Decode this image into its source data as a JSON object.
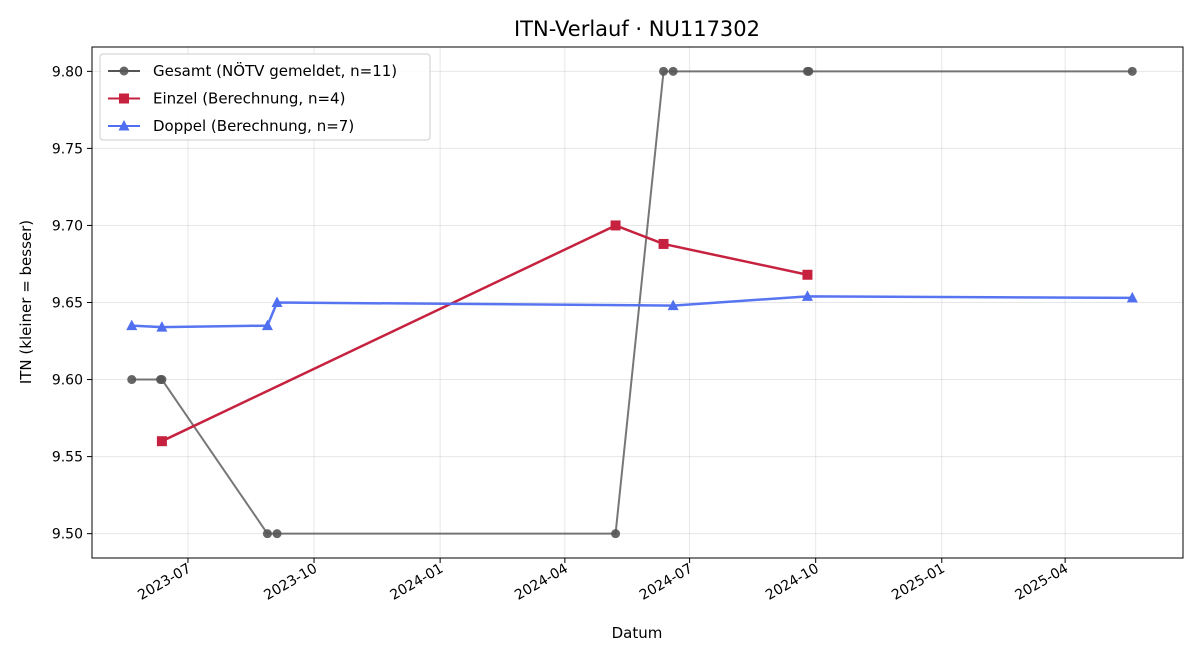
{
  "chart_data": {
    "type": "line",
    "title": "ITN-Verlauf · NU117302",
    "xlabel": "Datum",
    "ylabel": "ITN  (kleiner = besser)",
    "x_type": "date",
    "xlim": [
      "2023-04-22",
      "2025-06-26"
    ],
    "ylim": [
      9.4842,
      9.8158
    ],
    "x_ticks": [
      {
        "date": "2023-07-01",
        "label": "2023-07"
      },
      {
        "date": "2023-10-01",
        "label": "2023-10"
      },
      {
        "date": "2024-01-01",
        "label": "2024-01"
      },
      {
        "date": "2024-04-01",
        "label": "2024-04"
      },
      {
        "date": "2024-07-01",
        "label": "2024-07"
      },
      {
        "date": "2024-10-01",
        "label": "2024-10"
      },
      {
        "date": "2025-01-01",
        "label": "2025-01"
      },
      {
        "date": "2025-04-01",
        "label": "2025-04"
      }
    ],
    "y_ticks": [
      9.5,
      9.55,
      9.6,
      9.65,
      9.7,
      9.75,
      9.8
    ],
    "y_tick_labels": [
      "9.50",
      "9.55",
      "9.60",
      "9.65",
      "9.70",
      "9.75",
      "9.80"
    ],
    "grid": true,
    "legend_position": "top-left",
    "series": [
      {
        "name": "Gesamt (NÖTV gemeldet, n=11)",
        "color": "#555555",
        "marker": "circle",
        "points": [
          {
            "x": "2023-05-21",
            "y": 9.6
          },
          {
            "x": "2023-06-11",
            "y": 9.6
          },
          {
            "x": "2023-06-12",
            "y": 9.6
          },
          {
            "x": "2023-08-28",
            "y": 9.5
          },
          {
            "x": "2023-09-04",
            "y": 9.5
          },
          {
            "x": "2024-05-08",
            "y": 9.5
          },
          {
            "x": "2024-06-12",
            "y": 9.8
          },
          {
            "x": "2024-06-19",
            "y": 9.8
          },
          {
            "x": "2024-09-25",
            "y": 9.8
          },
          {
            "x": "2024-09-26",
            "y": 9.8
          },
          {
            "x": "2025-05-20",
            "y": 9.8
          }
        ]
      },
      {
        "name": "Einzel (Berechnung, n=4)",
        "color": "#c62240",
        "marker": "square",
        "points": [
          {
            "x": "2023-06-12",
            "y": 9.56
          },
          {
            "x": "2024-05-08",
            "y": 9.7
          },
          {
            "x": "2024-06-12",
            "y": 9.688
          },
          {
            "x": "2024-09-25",
            "y": 9.668
          }
        ]
      },
      {
        "name": "Doppel (Berechnung, n=7)",
        "color": "#4f6ef0",
        "marker": "triangle",
        "points": [
          {
            "x": "2023-05-21",
            "y": 9.635
          },
          {
            "x": "2023-06-12",
            "y": 9.634
          },
          {
            "x": "2023-08-28",
            "y": 9.635
          },
          {
            "x": "2023-09-04",
            "y": 9.65
          },
          {
            "x": "2024-06-19",
            "y": 9.648
          },
          {
            "x": "2024-09-25",
            "y": 9.654
          },
          {
            "x": "2025-05-20",
            "y": 9.653
          }
        ]
      }
    ]
  }
}
